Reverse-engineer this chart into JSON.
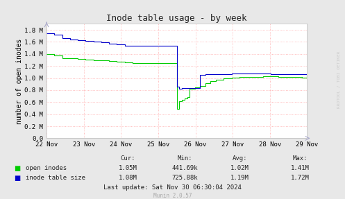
{
  "title": "Inode table usage - by week",
  "ylabel": "number of open inodes",
  "background_color": "#e8e8e8",
  "plot_bg_color": "#ffffff",
  "grid_color": "#ffaaaa",
  "ytick_labels": [
    "0.0",
    "0.2 M",
    "0.4 M",
    "0.6 M",
    "0.8 M",
    "1.0 M",
    "1.2 M",
    "1.4 M",
    "1.6 M",
    "1.8 M"
  ],
  "ytick_values": [
    0,
    200000,
    400000,
    600000,
    800000,
    1000000,
    1200000,
    1400000,
    1600000,
    1800000
  ],
  "ylim": [
    0,
    1900000
  ],
  "xtick_labels": [
    "22 Nov",
    "23 Nov",
    "24 Nov",
    "25 Nov",
    "26 Nov",
    "27 Nov",
    "28 Nov",
    "29 Nov"
  ],
  "legend_entries": [
    "open inodes",
    "inode table size"
  ],
  "legend_colors": [
    "#00cc00",
    "#0000cc"
  ],
  "line_green_color": "#00cc00",
  "line_blue_color": "#0000cc",
  "watermark": "RRDTOOL / TOBI OETIKER",
  "last_update": "Last update: Sat Nov 30 06:30:04 2024",
  "munin_version": "Munin 2.0.57",
  "stats_header": [
    "Cur:",
    "Min:",
    "Avg:",
    "Max:"
  ],
  "stats_green": [
    "1.05M",
    "441.69k",
    "1.02M",
    "1.41M"
  ],
  "stats_blue": [
    "1.08M",
    "725.88k",
    "1.19M",
    "1.72M"
  ],
  "green_x": [
    0.0,
    0.03,
    0.06,
    0.09,
    0.12,
    0.15,
    0.18,
    0.21,
    0.24,
    0.27,
    0.3,
    0.33,
    0.36,
    0.4,
    0.43,
    0.46,
    0.49,
    0.5,
    0.51,
    0.52,
    0.53,
    0.54,
    0.55,
    0.57,
    0.59,
    0.61,
    0.63,
    0.65,
    0.68,
    0.71,
    0.74,
    0.77,
    0.8,
    0.83,
    0.86,
    0.89,
    0.92,
    0.95,
    0.98,
    1.0
  ],
  "green_y": [
    1400000,
    1380000,
    1330000,
    1325000,
    1320000,
    1310000,
    1300000,
    1290000,
    1280000,
    1270000,
    1260000,
    1250000,
    1250000,
    1250000,
    1250000,
    1250000,
    1250000,
    490000,
    620000,
    640000,
    660000,
    680000,
    820000,
    850000,
    870000,
    920000,
    950000,
    970000,
    1000000,
    1010000,
    1020000,
    1020000,
    1020000,
    1030000,
    1025000,
    1020000,
    1020000,
    1015000,
    1010000,
    1050000
  ],
  "blue_x": [
    0.0,
    0.03,
    0.06,
    0.09,
    0.12,
    0.15,
    0.18,
    0.21,
    0.24,
    0.27,
    0.3,
    0.33,
    0.36,
    0.4,
    0.43,
    0.46,
    0.49,
    0.5,
    0.51,
    0.52,
    0.53,
    0.55,
    0.57,
    0.59,
    0.61,
    0.63,
    0.65,
    0.68,
    0.71,
    0.74,
    0.77,
    0.8,
    0.83,
    0.86,
    0.89,
    0.92,
    0.95,
    0.98,
    1.0
  ],
  "blue_y": [
    1740000,
    1720000,
    1660000,
    1640000,
    1630000,
    1620000,
    1600000,
    1590000,
    1570000,
    1560000,
    1540000,
    1540000,
    1540000,
    1540000,
    1540000,
    1540000,
    1540000,
    860000,
    820000,
    840000,
    840000,
    840000,
    840000,
    1050000,
    1060000,
    1060000,
    1065000,
    1070000,
    1075000,
    1075000,
    1075000,
    1075000,
    1075000,
    1060000,
    1060000,
    1060000,
    1060000,
    1060000,
    1080000
  ]
}
